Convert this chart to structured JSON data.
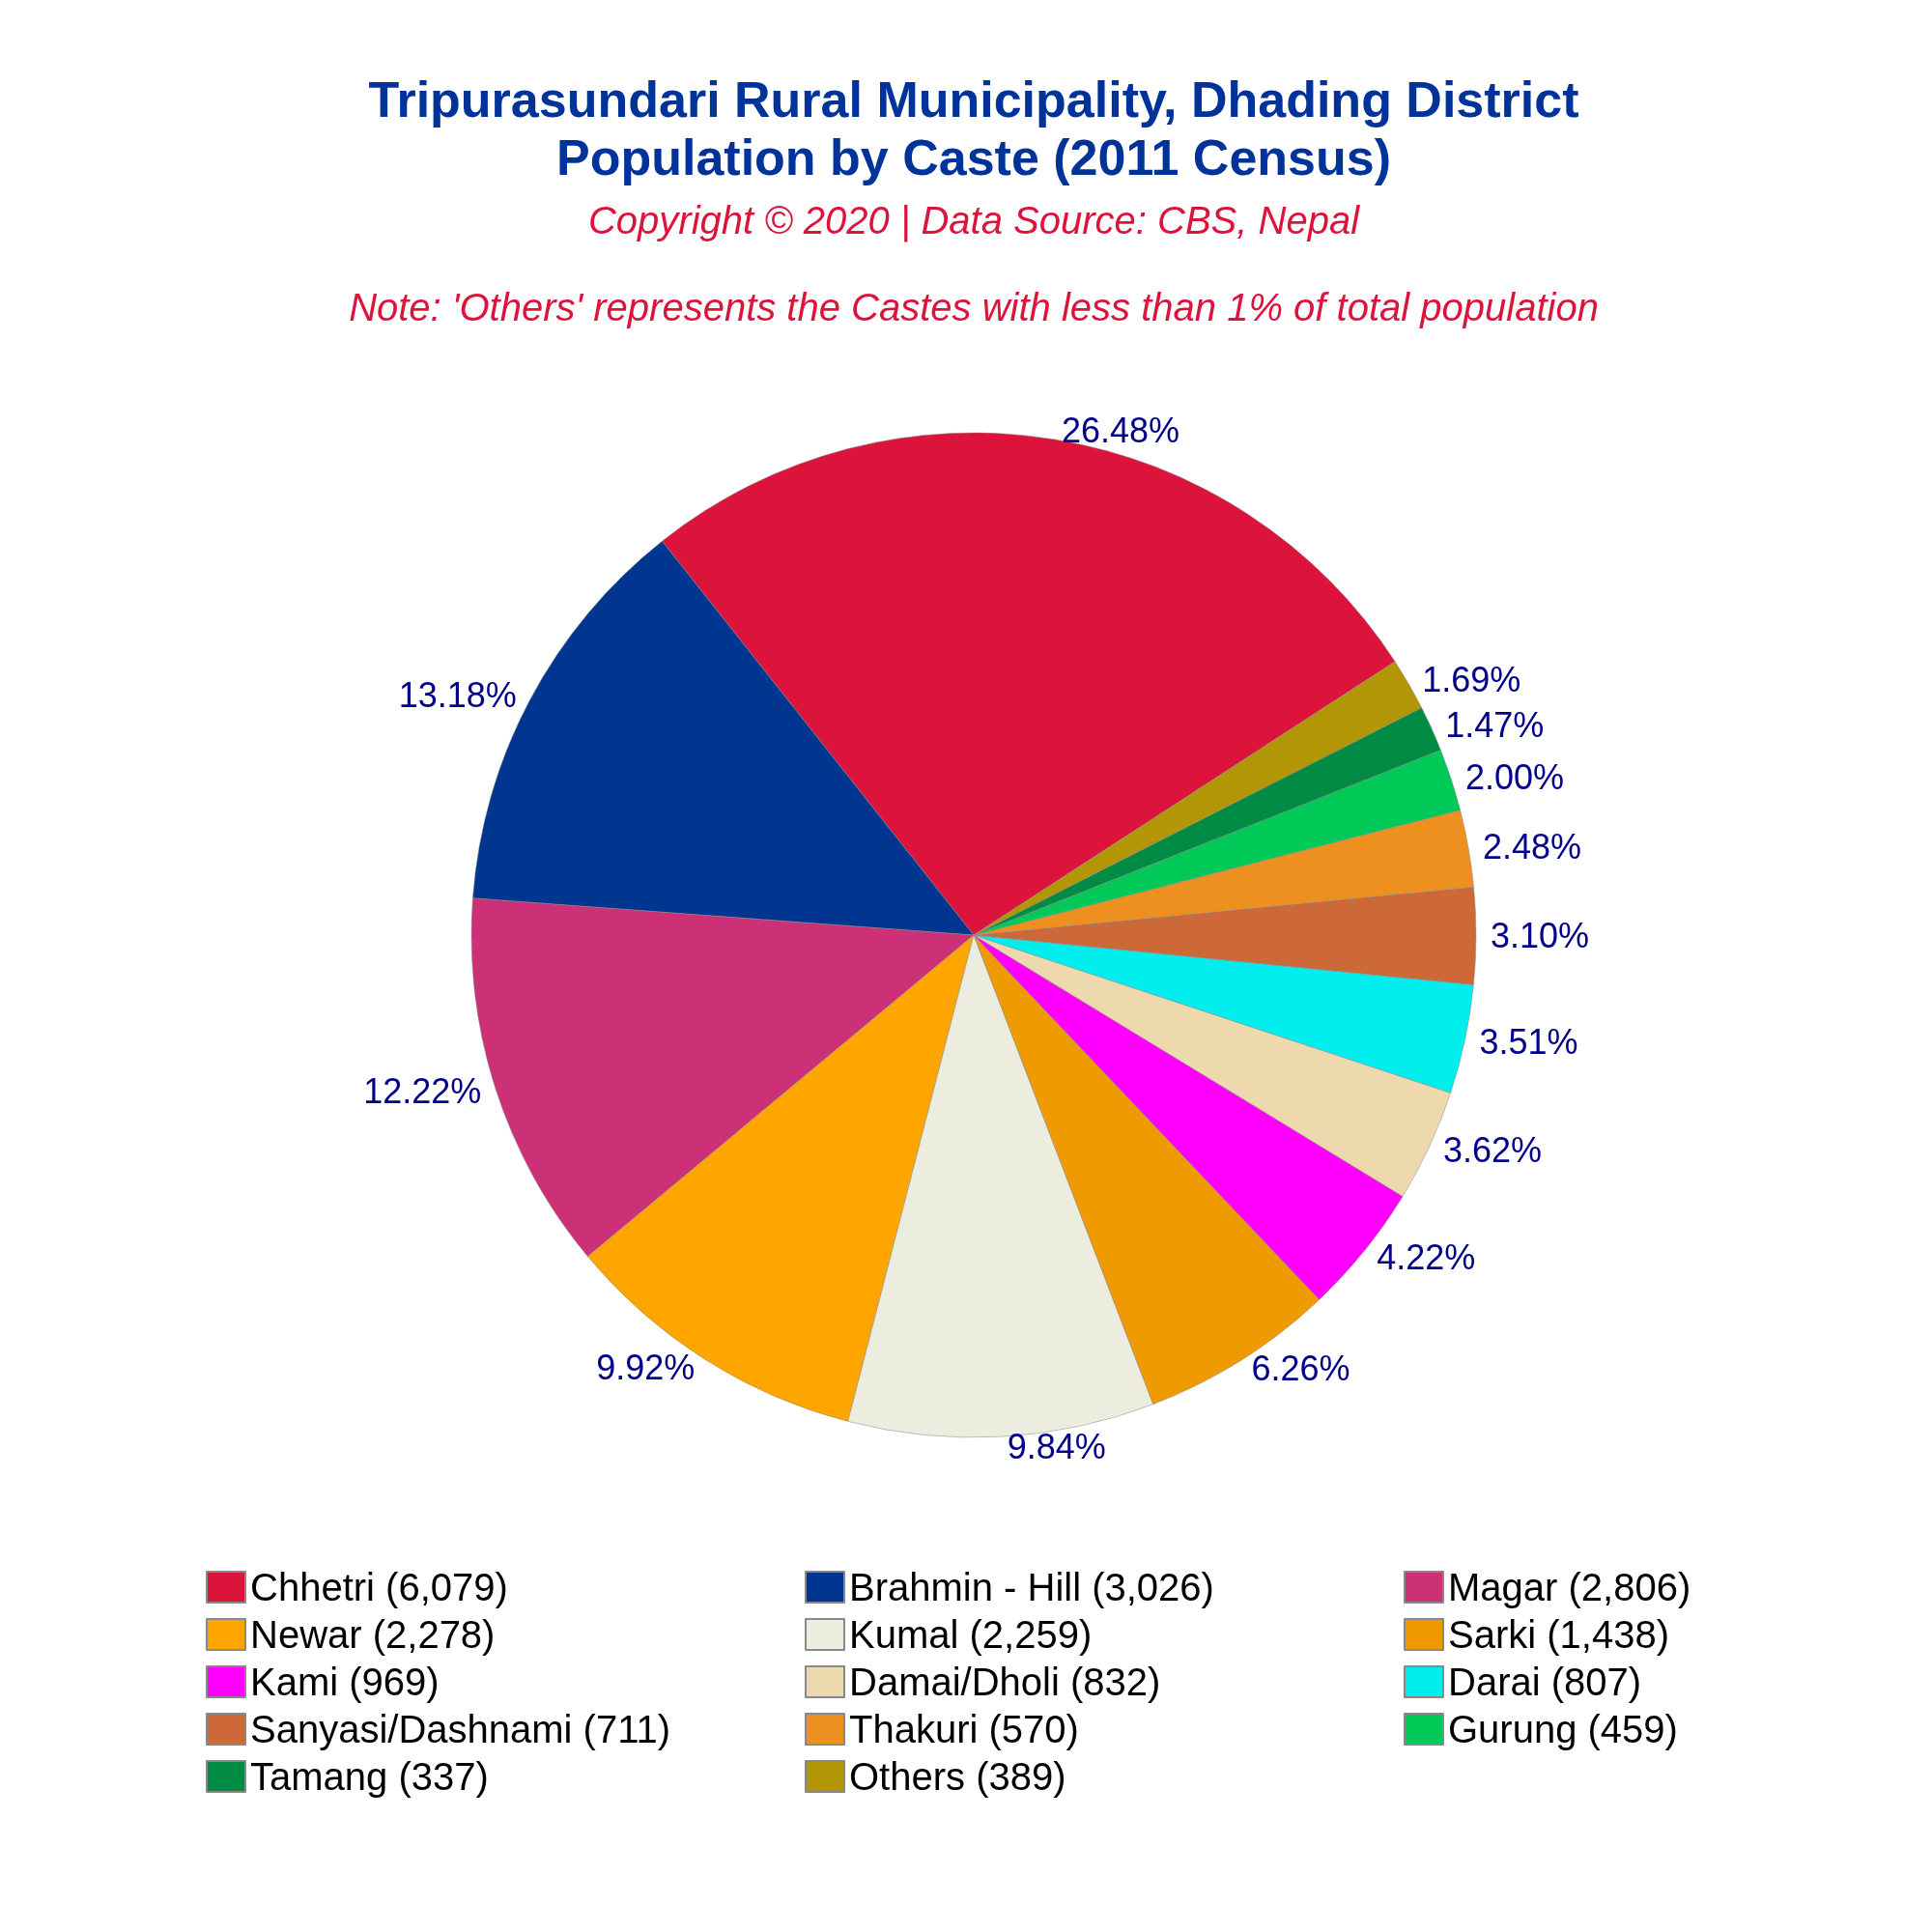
{
  "chart_data": {
    "type": "pie",
    "title": "Tripurasundari Rural Municipality, Dhading District\nPopulation by Caste (2011 Census)",
    "annotations": [
      "Copyright © 2020 | Data Source: CBS, Nepal",
      "Note: 'Others' represents the Castes with less than 1% of total population"
    ],
    "categories": [
      "Chhetri (6,079)",
      "Brahmin - Hill (3,026)",
      "Magar (2,806)",
      "Newar (2,278)",
      "Kumal (2,259)",
      "Sarki (1,438)",
      "Kami (969)",
      "Damai/Dholi (832)",
      "Darai (807)",
      "Sanyasi/Dashnami (711)",
      "Thakuri (570)",
      "Gurung (459)",
      "Tamang (337)",
      "Others (389)"
    ],
    "values": [
      26.48,
      13.18,
      12.22,
      9.92,
      9.84,
      6.26,
      4.22,
      3.62,
      3.51,
      3.1,
      2.48,
      2.0,
      1.47,
      1.69
    ],
    "value_labels": [
      "26.48%",
      "13.18%",
      "12.22%",
      "9.92%",
      "9.84%",
      "6.26%",
      "4.22%",
      "3.62%",
      "3.51%",
      "3.10%",
      "2.48%",
      "2.00%",
      "1.47%",
      "1.69%"
    ],
    "colors": [
      "#dc143c",
      "#00368f",
      "#cc3077",
      "#ffa500",
      "#ededdf",
      "#ee9a00",
      "#ff00ff",
      "#eed8ae",
      "#00eeee",
      "#cd6839",
      "#ee9020",
      "#00c957",
      "#008b45",
      "#b39605"
    ],
    "legend": "bottom"
  }
}
